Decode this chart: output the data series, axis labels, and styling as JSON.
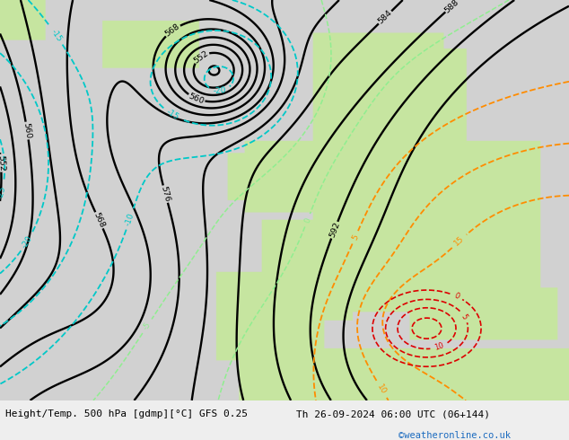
{
  "title_left": "Height/Temp. 500 hPa [gdmp][°C] GFS 0.25",
  "title_right": "Th 26-09-2024 06:00 UTC (06+144)",
  "watermark": "©weatheronline.co.uk",
  "sea_color": [
    0.82,
    0.82,
    0.82
  ],
  "land_color": [
    0.78,
    0.9,
    0.63
  ],
  "footer_bg": "#eeeeee",
  "height_levels": [
    516,
    520,
    524,
    528,
    532,
    536,
    540,
    544,
    548,
    552,
    556,
    560,
    564,
    568,
    572,
    576,
    580,
    584,
    588,
    592,
    596
  ],
  "temp_cold_levels": [
    -35,
    -30,
    -25,
    -20,
    -15,
    -10
  ],
  "temp_warm_levels": [
    5,
    10,
    15
  ],
  "temp_green_levels": [
    -5,
    0
  ],
  "temp_red_levels": [
    -5,
    -10
  ],
  "cyan_color": "#00c8c8",
  "orange_color": "#ff8c00",
  "lime_color": "#90ee90",
  "red_color": "#dd0000"
}
